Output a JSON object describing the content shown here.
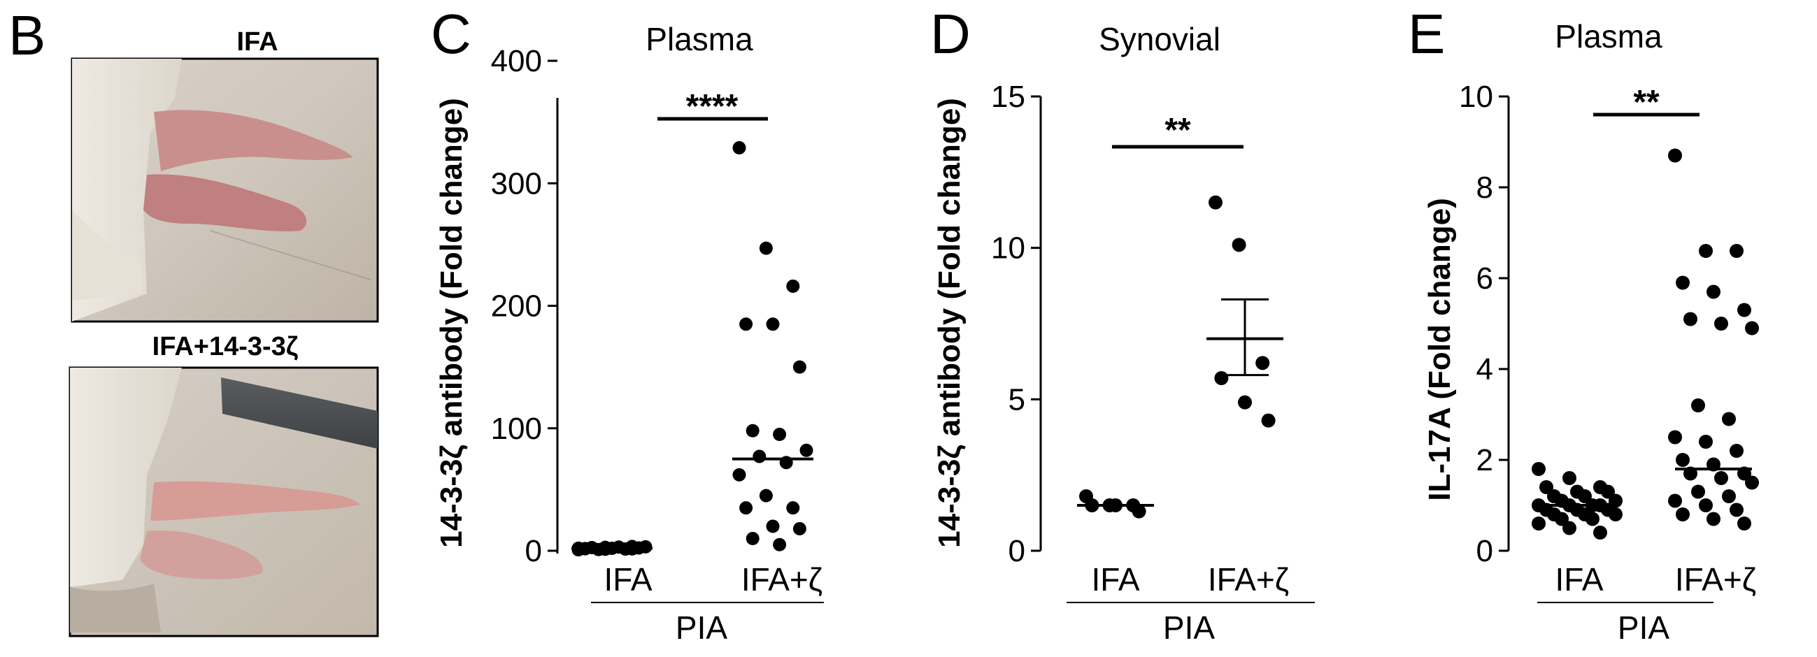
{
  "panel_b": {
    "letter": "B",
    "top_label": "IFA",
    "bottom_label": "IFA+14-3-3ζ"
  },
  "chart_data": [
    {
      "panel": "C",
      "type": "scatter",
      "title": "Plasma",
      "ylabel": "14-3-3ζ antibody (Fold change)",
      "ylim": [
        0,
        400
      ],
      "yticks": [
        "0",
        "100",
        "200",
        "300",
        "400"
      ],
      "categories": [
        "IFA",
        "IFA+ζ"
      ],
      "group_label": "PIA",
      "significance": "****",
      "series": [
        {
          "category": "IFA",
          "values": [
            0.8,
            1.2,
            1.5,
            1.8,
            2.0,
            2.3,
            2.6,
            3.0,
            3.2,
            1.0,
            1.4,
            2.1,
            2.8,
            3.5,
            1.6
          ]
        },
        {
          "category": "IFA+ζ",
          "values": [
            329,
            247,
            216,
            185,
            185,
            150,
            98,
            95,
            82,
            77,
            72,
            62,
            45,
            35,
            35,
            20,
            18,
            10,
            5
          ]
        }
      ],
      "center_lines": [
        2,
        75
      ]
    },
    {
      "panel": "D",
      "type": "scatter",
      "title": "Synovial",
      "ylabel": "14-3-3ζ antibody (Fold change)",
      "ylim": [
        0,
        15
      ],
      "yticks": [
        "0",
        "5",
        "10",
        "15"
      ],
      "categories": [
        "IFA",
        "IFA+ζ"
      ],
      "group_label": "PIA",
      "significance": "**",
      "series": [
        {
          "category": "IFA",
          "values": [
            1.8,
            1.5,
            1.5,
            1.5,
            1.5,
            1.3
          ]
        },
        {
          "category": "IFA+ζ",
          "values": [
            11.5,
            10.1,
            6.2,
            5.7,
            4.9,
            4.3
          ]
        }
      ],
      "center_lines": [
        1.5,
        7.0
      ],
      "error_bars": [
        null,
        [
          5.8,
          8.3
        ]
      ]
    },
    {
      "panel": "E",
      "type": "scatter",
      "title": "Plasma",
      "ylabel": "IL-17A (Fold change)",
      "ylim": [
        0,
        10
      ],
      "yticks": [
        "0",
        "2",
        "4",
        "6",
        "8",
        "10"
      ],
      "categories": [
        "IFA",
        "IFA+ζ"
      ],
      "group_label": "PIA",
      "significance": "**",
      "series": [
        {
          "category": "IFA",
          "values": [
            1.8,
            1.6,
            1.4,
            1.4,
            1.3,
            1.3,
            1.2,
            1.2,
            1.1,
            1.1,
            1.0,
            1.0,
            1.0,
            1.0,
            0.9,
            0.9,
            0.9,
            0.8,
            0.8,
            0.8,
            0.7,
            0.7,
            0.6,
            0.5,
            0.4
          ]
        },
        {
          "category": "IFA+ζ",
          "values": [
            8.7,
            6.6,
            6.6,
            5.9,
            5.7,
            5.3,
            5.1,
            5.0,
            4.9,
            3.2,
            2.9,
            2.5,
            2.4,
            2.2,
            2.0,
            1.9,
            1.7,
            1.7,
            1.6,
            1.5,
            1.3,
            1.2,
            1.1,
            1.0,
            0.9,
            0.8,
            0.7,
            0.6
          ]
        }
      ],
      "center_lines": [
        1.0,
        1.8
      ]
    }
  ],
  "colors": {
    "ink": "#000000",
    "background": "#ffffff"
  }
}
